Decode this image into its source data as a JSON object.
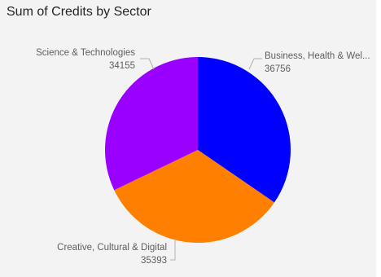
{
  "chart_data": {
    "type": "pie",
    "title": "Sum of Credits by Sector",
    "legend": "none",
    "slices": [
      {
        "label": "Business, Health & Wel...",
        "value": 36756,
        "value_label": "36756",
        "color": "#0000ff"
      },
      {
        "label": "Creative, Cultural & Digital",
        "value": 35393,
        "value_label": "35393",
        "color": "#ff8000"
      },
      {
        "label": "Science & Technologies",
        "value": 34155,
        "value_label": "34155",
        "color": "#9900ff"
      }
    ]
  }
}
